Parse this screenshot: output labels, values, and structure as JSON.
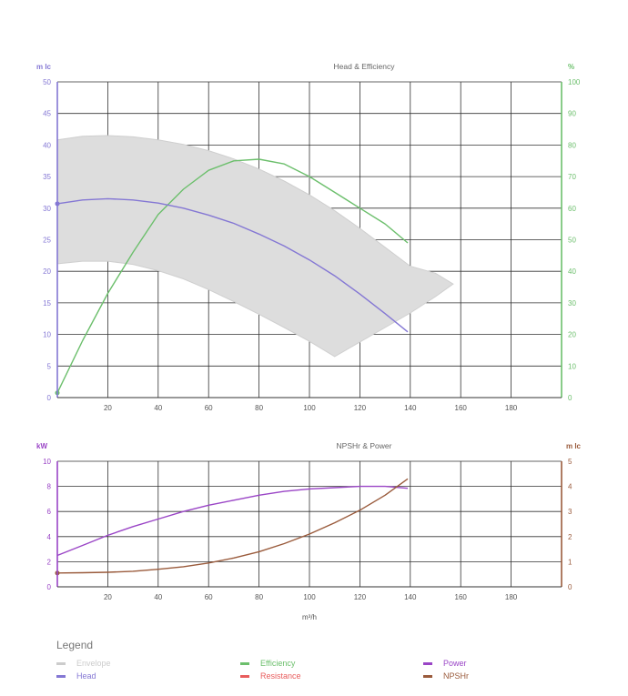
{
  "chart_data": [
    {
      "type": "line",
      "title": "Head & Efficiency",
      "y_left_label": "m lc",
      "y_right_label": "%",
      "xlim": [
        0,
        200
      ],
      "x_ticks": [
        20,
        40,
        60,
        80,
        100,
        120,
        140,
        160,
        180
      ],
      "ylim_left": [
        0,
        50
      ],
      "y_left_ticks": [
        0,
        5,
        10,
        15,
        20,
        25,
        30,
        35,
        40,
        45,
        50
      ],
      "ylim_right": [
        0,
        100
      ],
      "y_right_ticks": [
        0,
        10,
        20,
        30,
        40,
        50,
        60,
        70,
        80,
        90,
        100
      ],
      "grid": true,
      "series": [
        {
          "name": "Envelope",
          "color": "#d0d0d0",
          "kind": "area",
          "axis": "left",
          "upper": [
            [
              0,
              40.8
            ],
            [
              10,
              41.4
            ],
            [
              20,
              41.5
            ],
            [
              30,
              41.3
            ],
            [
              40,
              40.8
            ],
            [
              50,
              40.1
            ],
            [
              60,
              39.1
            ],
            [
              70,
              37.8
            ],
            [
              80,
              36.2
            ],
            [
              90,
              34.3
            ],
            [
              100,
              32.1
            ],
            [
              110,
              29.6
            ],
            [
              120,
              26.8
            ],
            [
              130,
              23.8
            ],
            [
              140,
              20.8
            ],
            [
              150,
              19.7
            ],
            [
              157,
              18.0
            ]
          ],
          "lower": [
            [
              0,
              21.2
            ],
            [
              10,
              21.6
            ],
            [
              20,
              21.6
            ],
            [
              30,
              21.1
            ],
            [
              40,
              20.1
            ],
            [
              50,
              18.8
            ],
            [
              60,
              17.1
            ],
            [
              70,
              15.2
            ],
            [
              80,
              13.2
            ],
            [
              90,
              11.1
            ],
            [
              100,
              8.9
            ],
            [
              110,
              6.5
            ],
            [
              120,
              8.8
            ],
            [
              130,
              11.1
            ],
            [
              140,
              13.4
            ],
            [
              150,
              16.0
            ],
            [
              157,
              18.0
            ]
          ]
        },
        {
          "name": "Efficiency",
          "color": "#6cbf6c",
          "kind": "line",
          "axis": "right",
          "points": [
            [
              0,
              1.5
            ],
            [
              10,
              18
            ],
            [
              20,
              33
            ],
            [
              30,
              46
            ],
            [
              40,
              58
            ],
            [
              50,
              66
            ],
            [
              60,
              72
            ],
            [
              70,
              75
            ],
            [
              80,
              75.5
            ],
            [
              90,
              74
            ],
            [
              100,
              70
            ],
            [
              110,
              65
            ],
            [
              120,
              60
            ],
            [
              130,
              55
            ],
            [
              139,
              49
            ]
          ],
          "marker_at_start": true
        },
        {
          "name": "Head",
          "color": "#8477d4",
          "kind": "line",
          "axis": "left",
          "points": [
            [
              0,
              30.7
            ],
            [
              10,
              31.3
            ],
            [
              20,
              31.5
            ],
            [
              30,
              31.3
            ],
            [
              40,
              30.8
            ],
            [
              50,
              30.0
            ],
            [
              60,
              28.9
            ],
            [
              70,
              27.6
            ],
            [
              80,
              25.9
            ],
            [
              90,
              24.0
            ],
            [
              100,
              21.8
            ],
            [
              110,
              19.3
            ],
            [
              120,
              16.4
            ],
            [
              130,
              13.3
            ],
            [
              139,
              10.4
            ]
          ],
          "marker_at_start": true
        }
      ]
    },
    {
      "type": "line",
      "title": "NPSHr & Power",
      "y_left_label": "kW",
      "y_right_label": "m lc",
      "xlabel": "m³/h",
      "xlim": [
        0,
        200
      ],
      "x_ticks": [
        20,
        40,
        60,
        80,
        100,
        120,
        140,
        160,
        180
      ],
      "ylim_left": [
        0,
        10
      ],
      "y_left_ticks": [
        0,
        2,
        4,
        6,
        8,
        10
      ],
      "ylim_right": [
        0,
        5
      ],
      "y_right_ticks": [
        0,
        1,
        2,
        3,
        4,
        5
      ],
      "grid": true,
      "series": [
        {
          "name": "Power",
          "color": "#9a45c6",
          "kind": "line",
          "axis": "left",
          "points": [
            [
              0,
              2.5
            ],
            [
              10,
              3.3
            ],
            [
              20,
              4.1
            ],
            [
              30,
              4.8
            ],
            [
              40,
              5.4
            ],
            [
              50,
              6.0
            ],
            [
              60,
              6.5
            ],
            [
              70,
              6.9
            ],
            [
              80,
              7.3
            ],
            [
              90,
              7.6
            ],
            [
              100,
              7.8
            ],
            [
              110,
              7.9
            ],
            [
              120,
              8.0
            ],
            [
              130,
              8.0
            ],
            [
              139,
              7.85
            ]
          ]
        },
        {
          "name": "NPSHr",
          "color": "#9a5b3c",
          "kind": "line",
          "axis": "right",
          "points": [
            [
              0,
              0.55
            ],
            [
              10,
              0.56
            ],
            [
              20,
              0.58
            ],
            [
              30,
              0.62
            ],
            [
              40,
              0.7
            ],
            [
              50,
              0.8
            ],
            [
              60,
              0.95
            ],
            [
              70,
              1.15
            ],
            [
              80,
              1.4
            ],
            [
              90,
              1.72
            ],
            [
              100,
              2.1
            ],
            [
              110,
              2.55
            ],
            [
              120,
              3.05
            ],
            [
              130,
              3.65
            ],
            [
              139,
              4.3
            ]
          ],
          "marker_at_start": true
        }
      ]
    }
  ],
  "legend": {
    "title": "Legend",
    "items": [
      {
        "label": "Envelope",
        "color": "#cccccc"
      },
      {
        "label": "Efficiency",
        "color": "#6cbf6c"
      },
      {
        "label": "Power",
        "color": "#9a45c6"
      },
      {
        "label": "Head",
        "color": "#8477d4"
      },
      {
        "label": "Resistance",
        "color": "#e85c5c"
      },
      {
        "label": "NPSHr",
        "color": "#9a5b3c"
      }
    ]
  }
}
